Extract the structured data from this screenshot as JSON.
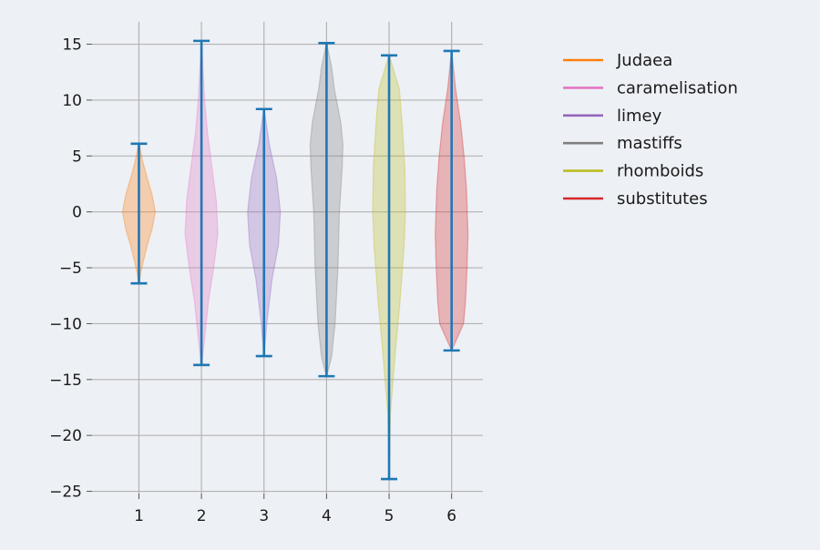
{
  "chart_data": {
    "type": "violin",
    "title": "",
    "xlabel": "",
    "ylabel": "",
    "x_ticks": [
      "1",
      "2",
      "3",
      "4",
      "5",
      "6"
    ],
    "y_ticks": [
      15,
      10,
      5,
      0,
      -5,
      -10,
      -15,
      -20,
      -25
    ],
    "y_tick_labels": [
      "15",
      "10",
      "5",
      "0",
      "−5",
      "−10",
      "−15",
      "−20",
      "−25"
    ],
    "ylim": [
      -25.2,
      17.0
    ],
    "xlim": [
      0.25,
      6.5
    ],
    "grid": true,
    "legend_position": "right",
    "series": [
      {
        "name": "Judaea",
        "position": 1,
        "min": -6.4,
        "max": 6.1,
        "color": "#ff7f0e",
        "density": [
          [
            -6.4,
            0.1
          ],
          [
            -5.5,
            0.5
          ],
          [
            -4.5,
            1.2
          ],
          [
            -3,
            2.4
          ],
          [
            -1.5,
            3.8
          ],
          [
            0,
            4.7
          ],
          [
            1.5,
            3.8
          ],
          [
            3,
            2.4
          ],
          [
            4.5,
            1.1
          ],
          [
            6.1,
            0.1
          ]
        ]
      },
      {
        "name": "caramelisation",
        "position": 2,
        "min": -13.7,
        "max": 15.3,
        "color": "#e377c2",
        "density": [
          [
            -13.7,
            0.1
          ],
          [
            -11,
            2.0
          ],
          [
            -8,
            4.0
          ],
          [
            -5,
            7.0
          ],
          [
            -2,
            9.4
          ],
          [
            1,
            8.5
          ],
          [
            4,
            6.0
          ],
          [
            7,
            3.5
          ],
          [
            10,
            1.8
          ],
          [
            13,
            0.8
          ],
          [
            15.3,
            0.1
          ]
        ]
      },
      {
        "name": "limey",
        "position": 3,
        "min": -12.9,
        "max": 9.2,
        "color": "#9467bd",
        "density": [
          [
            -12.9,
            0.1
          ],
          [
            -10,
            1.5
          ],
          [
            -6,
            4.5
          ],
          [
            -3,
            8.0
          ],
          [
            0,
            9.1
          ],
          [
            3,
            7.0
          ],
          [
            6,
            3.0
          ],
          [
            9.2,
            0.1
          ]
        ]
      },
      {
        "name": "mastiffs",
        "position": 4,
        "min": -14.7,
        "max": 15.1,
        "color": "#7f7f7f",
        "density": [
          [
            -14.7,
            0.1
          ],
          [
            -13,
            3.5
          ],
          [
            -10,
            6.0
          ],
          [
            -5,
            8.0
          ],
          [
            0,
            9.0
          ],
          [
            4,
            11.0
          ],
          [
            6,
            11.5
          ],
          [
            8,
            10.0
          ],
          [
            11,
            5.5
          ],
          [
            13,
            3.5
          ],
          [
            15.1,
            0.1
          ]
        ]
      },
      {
        "name": "rhomboids",
        "position": 5,
        "min": -23.9,
        "max": 14.0,
        "color": "#bcbd22",
        "density": [
          [
            -23.9,
            0.1
          ],
          [
            -18,
            1.0
          ],
          [
            -12,
            5.0
          ],
          [
            -8,
            8.0
          ],
          [
            -3,
            11.0
          ],
          [
            0,
            12.0
          ],
          [
            4,
            11.5
          ],
          [
            8,
            9.5
          ],
          [
            11,
            7.5
          ],
          [
            14.0,
            0.1
          ]
        ]
      },
      {
        "name": "substitutes",
        "position": 6,
        "min": -12.4,
        "max": 14.4,
        "color": "#d62728",
        "density": [
          [
            -12.4,
            0.1
          ],
          [
            -10,
            12.0
          ],
          [
            -8,
            14.0
          ],
          [
            -5,
            15.5
          ],
          [
            -2,
            16.5
          ],
          [
            2,
            15.0
          ],
          [
            5,
            12.5
          ],
          [
            8,
            9.0
          ],
          [
            11,
            4.0
          ],
          [
            14.4,
            0.1
          ]
        ]
      }
    ]
  }
}
